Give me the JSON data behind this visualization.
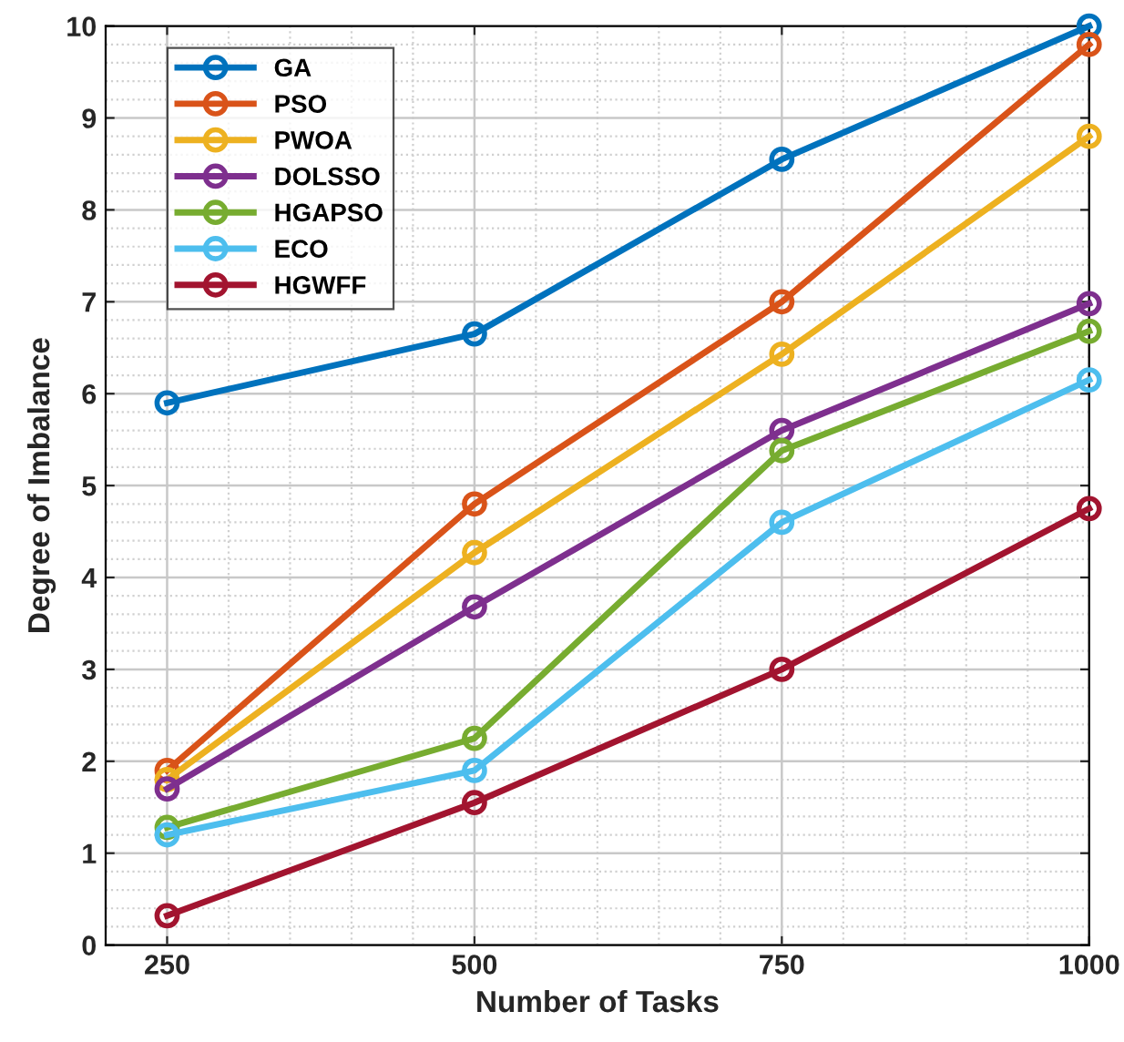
{
  "chart_data": {
    "type": "line",
    "xlabel": "Number of Tasks",
    "ylabel": "Degree of Imbalance",
    "x": [
      250,
      500,
      750,
      1000
    ],
    "series": [
      {
        "name": "GA",
        "color": "#0072bd",
        "values": [
          5.9,
          6.65,
          8.55,
          10
        ]
      },
      {
        "name": "PSO",
        "color": "#d95319",
        "values": [
          1.9,
          4.8,
          7.0,
          9.8
        ]
      },
      {
        "name": "PWOA",
        "color": "#edb120",
        "values": [
          1.8,
          4.27,
          6.43,
          8.8
        ]
      },
      {
        "name": "DOLSSO",
        "color": "#7e2f8e",
        "values": [
          1.7,
          3.68,
          5.6,
          6.98
        ]
      },
      {
        "name": "HGAPSO",
        "color": "#77ac30",
        "values": [
          1.28,
          2.25,
          5.38,
          6.68
        ]
      },
      {
        "name": "ECO",
        "color": "#4dbeee",
        "values": [
          1.2,
          1.9,
          4.6,
          6.15
        ]
      },
      {
        "name": "HGWFF",
        "color": "#a2142f",
        "values": [
          0.32,
          1.55,
          3.0,
          4.75
        ]
      }
    ],
    "xlim": [
      200,
      1000
    ],
    "xticks": [
      250,
      500,
      750,
      1000
    ],
    "ylim": [
      0,
      10
    ],
    "yticks": [
      0,
      1,
      2,
      3,
      4,
      5,
      6,
      7,
      8,
      9,
      10
    ],
    "grid": true,
    "legend": "top left",
    "marker": "circle",
    "line_style": "solid"
  }
}
